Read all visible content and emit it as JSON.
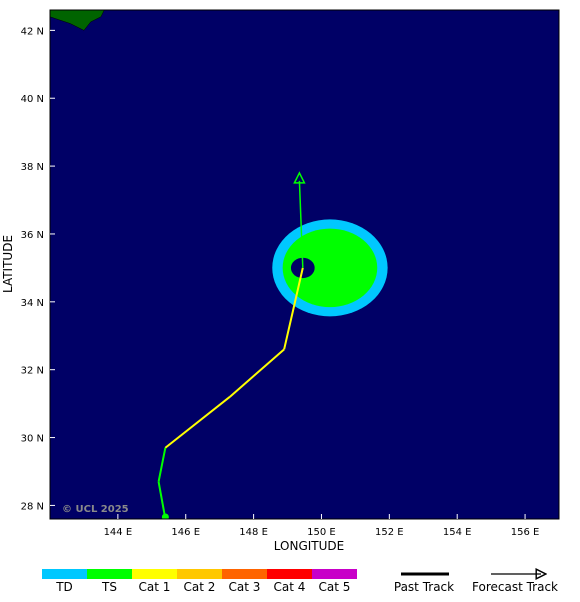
{
  "map": {
    "copyright": "© UCL 2025",
    "xlabel": "LONGITUDE",
    "ylabel": "LATITUDE",
    "lon_range": [
      142.0,
      157.0
    ],
    "lat_range": [
      27.6,
      42.6
    ],
    "lon_ticks": [
      {
        "value": 144,
        "label": "144 E"
      },
      {
        "value": 146,
        "label": "146 E"
      },
      {
        "value": 148,
        "label": "148 E"
      },
      {
        "value": 150,
        "label": "150 E"
      },
      {
        "value": 152,
        "label": "152 E"
      },
      {
        "value": 154,
        "label": "154 E"
      },
      {
        "value": 156,
        "label": "156 E"
      }
    ],
    "lat_ticks": [
      {
        "value": 28,
        "label": "28 N"
      },
      {
        "value": 30,
        "label": "30 N"
      },
      {
        "value": 32,
        "label": "32 N"
      },
      {
        "value": 34,
        "label": "34 N"
      },
      {
        "value": 36,
        "label": "36 N"
      },
      {
        "value": 38,
        "label": "38 N"
      },
      {
        "value": 40,
        "label": "40 N"
      },
      {
        "value": 42,
        "label": "42 N"
      }
    ],
    "colors": {
      "ocean": "#000066",
      "land": "#006400",
      "TD": "#00c8ff",
      "TS": "#00ff00",
      "Cat1": "#ffff00",
      "Cat2": "#ffc800",
      "Cat3": "#ff6400",
      "Cat4": "#ff0000",
      "Cat5": "#c800c8"
    },
    "wind_field": {
      "center": [
        149.45,
        35.0
      ],
      "td_radius_lon": 5.0,
      "td_radius_lat": 4.2,
      "ts_radius_lon": 4.1,
      "ts_radius_lat": 3.4,
      "center_offset_lon": 0.8,
      "eye_radius_lon": 0.35,
      "eye_radius_lat": 0.3
    },
    "past_track": [
      {
        "lon": 145.4,
        "lat": 27.6,
        "intensity": "TS"
      },
      {
        "lon": 145.2,
        "lat": 28.7,
        "intensity": "TS"
      },
      {
        "lon": 145.4,
        "lat": 29.7,
        "intensity": "TS"
      },
      {
        "lon": 147.3,
        "lat": 31.2,
        "intensity": "Cat1"
      },
      {
        "lon": 148.9,
        "lat": 32.6,
        "intensity": "Cat1"
      },
      {
        "lon": 149.45,
        "lat": 35.0,
        "intensity": "Cat1"
      }
    ],
    "forecast_track": [
      {
        "lon": 149.45,
        "lat": 35.0
      },
      {
        "lon": 149.35,
        "lat": 37.8
      }
    ],
    "land_outline": [
      [
        142.0,
        42.6
      ],
      [
        143.6,
        42.6
      ],
      [
        143.5,
        42.4
      ],
      [
        143.2,
        42.25
      ],
      [
        143.0,
        42.0
      ],
      [
        142.6,
        42.2
      ],
      [
        142.0,
        42.4
      ]
    ]
  },
  "legend": {
    "categories": [
      {
        "label": "TD",
        "color": "#00c8ff"
      },
      {
        "label": "TS",
        "color": "#00ff00"
      },
      {
        "label": "Cat 1",
        "color": "#ffff00"
      },
      {
        "label": "Cat 2",
        "color": "#ffc800"
      },
      {
        "label": "Cat 3",
        "color": "#ff6400"
      },
      {
        "label": "Cat 4",
        "color": "#ff0000"
      },
      {
        "label": "Cat 5",
        "color": "#c800c8"
      }
    ],
    "past_track_label": "Past Track",
    "forecast_track_label": "Forecast Track"
  }
}
